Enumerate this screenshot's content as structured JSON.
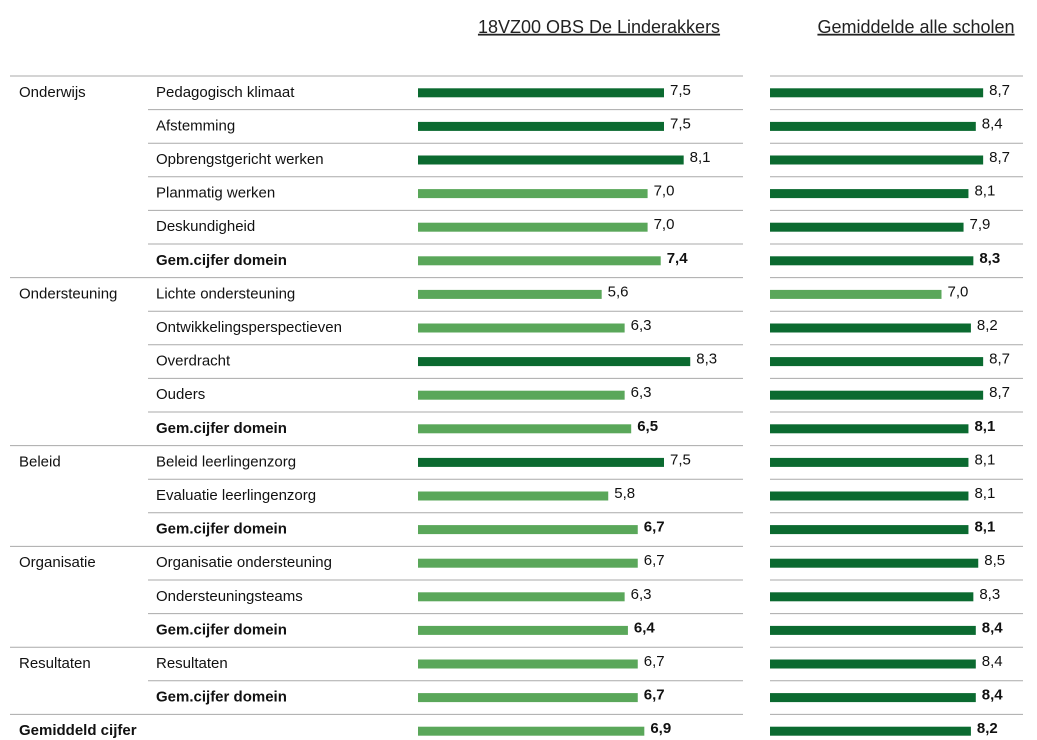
{
  "chart_data": {
    "type": "bar",
    "orientation": "horizontal",
    "group_labels": [
      "Onderwijs",
      null,
      null,
      null,
      null,
      null,
      "Ondersteuning",
      null,
      null,
      null,
      null,
      "Beleid",
      null,
      null,
      "Organisatie",
      null,
      null,
      "Resultaten",
      null,
      "Gemiddeld cijfer"
    ],
    "categories": [
      "Pedagogisch klimaat",
      "Afstemming",
      "Opbrengstgericht werken",
      "Planmatig werken",
      "Deskundigheid",
      "Gem.cijfer domein",
      "Lichte ondersteuning",
      "Ontwikkelingsperspectieven",
      "Overdracht",
      "Ouders",
      "Gem.cijfer domein",
      "Beleid leerlingenzorg",
      "Evaluatie leerlingenzorg",
      "Gem.cijfer domein",
      "Organisatie ondersteuning",
      "Ondersteuningsteams",
      "Gem.cijfer domein",
      "Resultaten",
      "Gem.cijfer domein",
      null
    ],
    "bold": [
      false,
      false,
      false,
      false,
      false,
      true,
      false,
      false,
      false,
      false,
      true,
      false,
      false,
      true,
      false,
      false,
      true,
      false,
      true,
      true
    ],
    "xlim": [
      0,
      10
    ],
    "series": [
      {
        "name": "18VZ00 OBS De Linderakkers",
        "values": [
          7.5,
          7.5,
          8.1,
          7.0,
          7.0,
          7.4,
          5.6,
          6.3,
          8.3,
          6.3,
          6.5,
          7.5,
          5.8,
          6.7,
          6.7,
          6.3,
          6.4,
          6.7,
          6.7,
          6.9
        ],
        "value_labels": [
          "7,5",
          "7,5",
          "8,1",
          "7,0",
          "7,0",
          "7,4",
          "5,6",
          "6,3",
          "8,3",
          "6,3",
          "6,5",
          "7,5",
          "5,8",
          "6,7",
          "6,7",
          "6,3",
          "6,4",
          "6,7",
          "6,7",
          "6,9"
        ],
        "colors": [
          "#0b6a30",
          "#0b6a30",
          "#0b6a30",
          "#5aa75a",
          "#5aa75a",
          "#5aa75a",
          "#5aa75a",
          "#5aa75a",
          "#0b6a30",
          "#5aa75a",
          "#5aa75a",
          "#0b6a30",
          "#5aa75a",
          "#5aa75a",
          "#5aa75a",
          "#5aa75a",
          "#5aa75a",
          "#5aa75a",
          "#5aa75a",
          "#5aa75a"
        ]
      },
      {
        "name": "Gemiddelde alle scholen",
        "values": [
          8.7,
          8.4,
          8.7,
          8.1,
          7.9,
          8.3,
          7.0,
          8.2,
          8.7,
          8.7,
          8.1,
          8.1,
          8.1,
          8.1,
          8.5,
          8.3,
          8.4,
          8.4,
          8.4,
          8.2
        ],
        "value_labels": [
          "8,7",
          "8,4",
          "8,7",
          "8,1",
          "7,9",
          "8,3",
          "7,0",
          "8,2",
          "8,7",
          "8,7",
          "8,1",
          "8,1",
          "8,1",
          "8,1",
          "8,5",
          "8,3",
          "8,4",
          "8,4",
          "8,4",
          "8,2"
        ],
        "colors": [
          "#0b6a30",
          "#0b6a30",
          "#0b6a30",
          "#0b6a30",
          "#0b6a30",
          "#0b6a30",
          "#5aa75a",
          "#0b6a30",
          "#0b6a30",
          "#0b6a30",
          "#0b6a30",
          "#0b6a30",
          "#0b6a30",
          "#0b6a30",
          "#0b6a30",
          "#0b6a30",
          "#0b6a30",
          "#0b6a30",
          "#0b6a30",
          "#0b6a30"
        ]
      }
    ]
  }
}
